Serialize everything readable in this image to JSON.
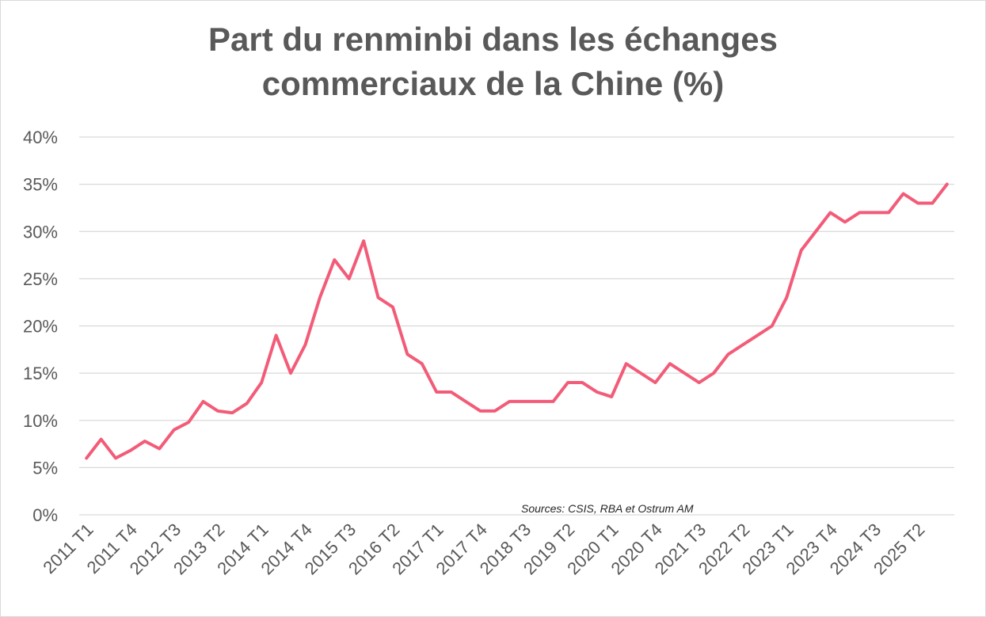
{
  "chart_data": {
    "type": "line",
    "title_lines": [
      "Part du renminbi dans les échanges",
      "commerciaux de la Chine (%)"
    ],
    "xlabel": "",
    "ylabel": "",
    "ylim": [
      0,
      40
    ],
    "yticks": [
      "0%",
      "5%",
      "10%",
      "15%",
      "20%",
      "25%",
      "30%",
      "35%",
      "40%"
    ],
    "grid": true,
    "legend": "none",
    "line_color": "#f25c78",
    "x_tick_labels": [
      "2011 T1",
      "2011 T4",
      "2012 T3",
      "2013 T2",
      "2014 T1",
      "2014 T4",
      "2015 T3",
      "2016 T2",
      "2017 T1",
      "2017 T4",
      "2018 T3",
      "2019 T2",
      "2020 T1",
      "2020 T4",
      "2021 T3",
      "2022 T2",
      "2023 T1",
      "2023 T4",
      "2024 T3",
      "2025 T2"
    ],
    "series": [
      {
        "values": [
          6,
          8,
          6,
          6.8,
          7.8,
          7,
          9,
          9.8,
          12,
          11,
          10.8,
          11.8,
          14,
          19,
          15,
          18,
          23,
          27,
          25,
          29,
          23,
          22,
          17,
          16,
          13,
          13,
          12,
          11,
          11,
          12,
          12,
          12,
          12,
          14,
          14,
          13,
          12.5,
          16,
          15,
          14,
          16,
          15,
          14,
          15,
          17,
          18,
          19,
          20,
          23,
          28,
          30,
          32,
          31,
          32,
          32,
          32,
          34,
          33,
          33,
          35
        ]
      }
    ],
    "source_note": "Sources: CSIS, RBA et Ostrum AM"
  }
}
